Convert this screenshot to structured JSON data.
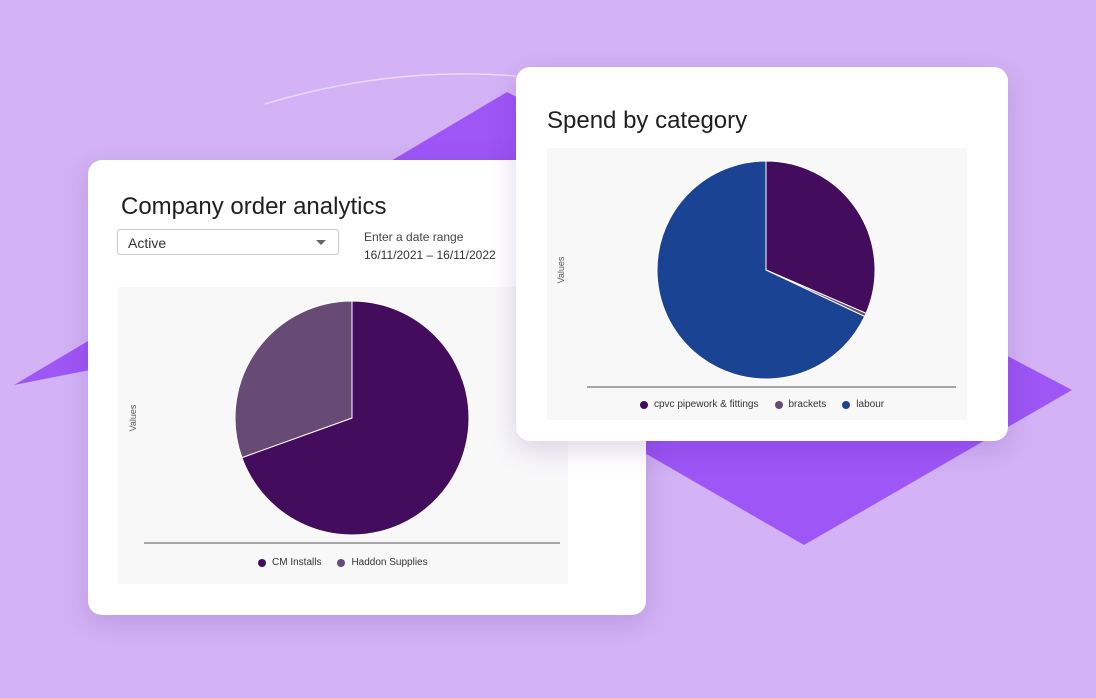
{
  "colors": {
    "background": "#d3b3f5",
    "diamond": "#9b51f5",
    "card": "#ffffff"
  },
  "orders_card": {
    "title": "Company order analytics",
    "filter": {
      "selected": "Active"
    },
    "date_range": {
      "label": "Enter a date range",
      "value": "16/11/2021 – 16/11/2022"
    }
  },
  "spend_card": {
    "title": "Spend by category"
  },
  "chart_data": [
    {
      "type": "pie",
      "title": "Company order analytics",
      "ylabel": "Values",
      "legend_position": "bottom",
      "labels": [
        "CM Installs",
        "Haddon Supplies"
      ],
      "values": [
        69.5,
        30.5
      ],
      "colors": [
        "#430c5c",
        "#684b74"
      ]
    },
    {
      "type": "pie",
      "title": "Spend by category",
      "ylabel": "Values",
      "legend_position": "bottom",
      "labels": [
        "cpvc pipework & fittings",
        "brackets",
        "labour"
      ],
      "values": [
        31.5,
        0.5,
        68.0
      ],
      "colors": [
        "#430c5c",
        "#684b74",
        "#1a4394"
      ]
    }
  ]
}
